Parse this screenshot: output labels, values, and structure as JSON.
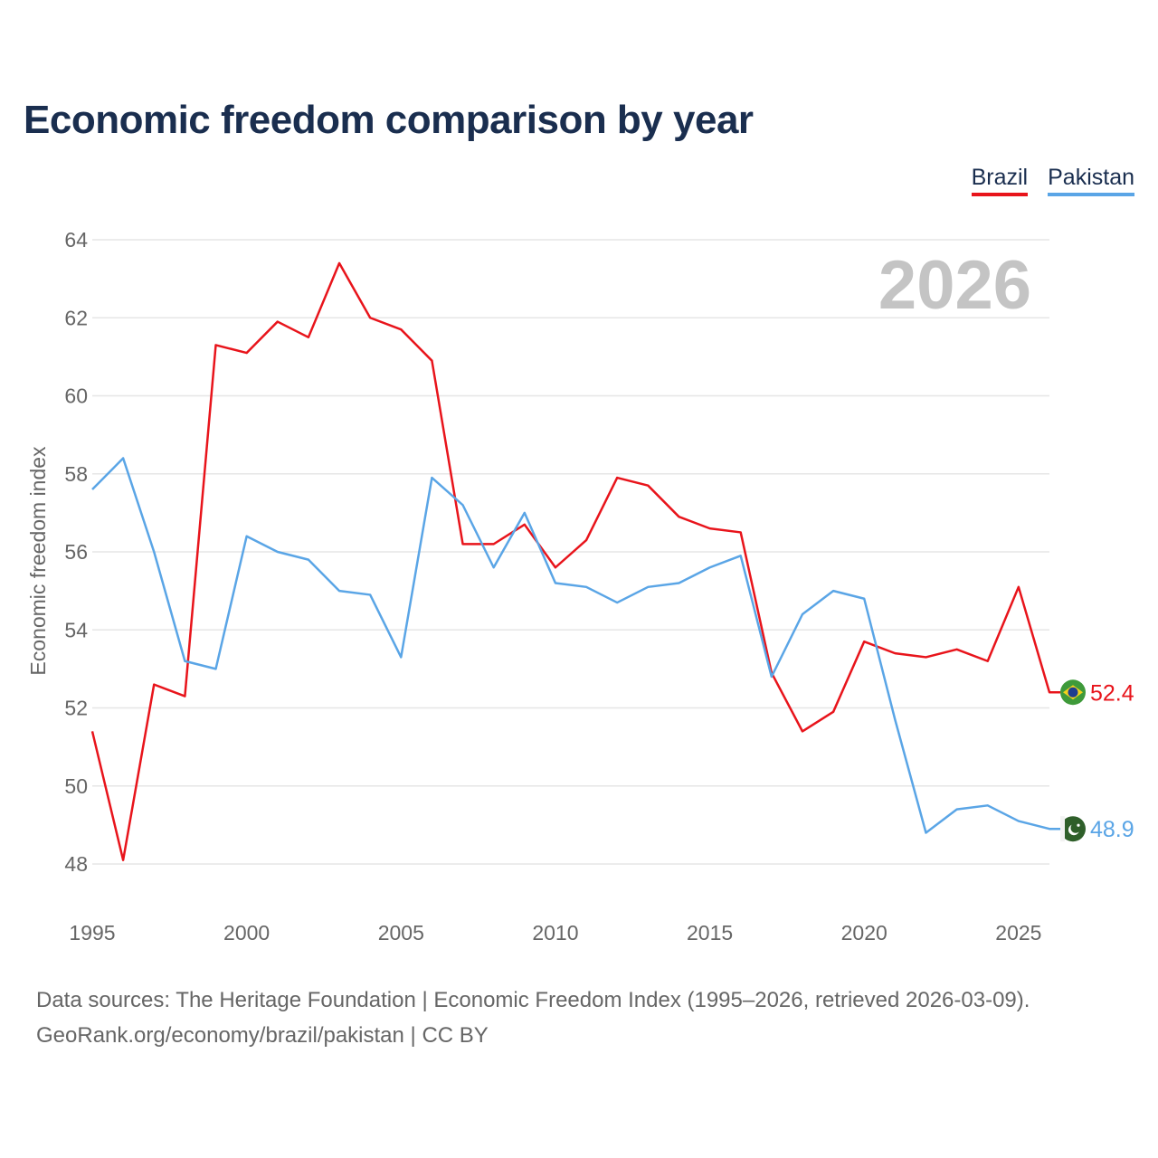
{
  "title": "Economic freedom comparison by year",
  "legend": {
    "brazil": "Brazil",
    "pakistan": "Pakistan"
  },
  "footer": {
    "line1": "Data sources: The Heritage Foundation | Economic Freedom Index (1995–2026, retrieved 2026-03-09).",
    "line2": "GeoRank.org/economy/brazil/pakistan | CC BY"
  },
  "colors": {
    "brazil": "#e8141b",
    "pakistan": "#5aa5e6",
    "grid": "#e6e6e6",
    "axis_text": "#666666",
    "year_watermark": "#c4c4c4"
  },
  "chart_data": {
    "type": "line",
    "title": "Economic freedom comparison by year",
    "xlabel": "",
    "ylabel": "Economic freedom index",
    "year_label": "2026",
    "xlim": [
      1995,
      2026
    ],
    "ylim": [
      47,
      64
    ],
    "y_ticks": [
      48,
      50,
      52,
      54,
      56,
      58,
      60,
      62,
      64
    ],
    "x_ticks": [
      1995,
      2000,
      2005,
      2010,
      2015,
      2020,
      2025
    ],
    "x": [
      1995,
      1996,
      1997,
      1998,
      1999,
      2000,
      2001,
      2002,
      2003,
      2004,
      2005,
      2006,
      2007,
      2008,
      2009,
      2010,
      2011,
      2012,
      2013,
      2014,
      2015,
      2016,
      2017,
      2018,
      2019,
      2020,
      2021,
      2022,
      2023,
      2024,
      2025,
      2026
    ],
    "series": [
      {
        "name": "Brazil",
        "color": "#e8141b",
        "end_label": "52.4",
        "flag_icon": "brazil-flag-icon",
        "values": [
          51.4,
          48.1,
          52.6,
          52.3,
          61.3,
          61.1,
          61.9,
          61.5,
          63.4,
          62.0,
          61.7,
          60.9,
          56.2,
          56.2,
          56.7,
          55.6,
          56.3,
          57.9,
          57.7,
          56.9,
          56.6,
          56.5,
          52.9,
          51.4,
          51.9,
          53.7,
          53.4,
          53.3,
          53.5,
          53.2,
          55.1,
          52.4
        ]
      },
      {
        "name": "Pakistan",
        "color": "#5aa5e6",
        "end_label": "48.9",
        "flag_icon": "pakistan-flag-icon",
        "values": [
          57.6,
          58.4,
          56.0,
          53.2,
          53.0,
          56.4,
          56.0,
          55.8,
          55.0,
          54.9,
          53.3,
          57.9,
          57.2,
          55.6,
          57.0,
          55.2,
          55.1,
          54.7,
          55.1,
          55.2,
          55.6,
          55.9,
          52.8,
          54.4,
          55.0,
          54.8,
          51.7,
          48.8,
          49.4,
          49.5,
          49.1,
          48.9
        ]
      }
    ]
  }
}
